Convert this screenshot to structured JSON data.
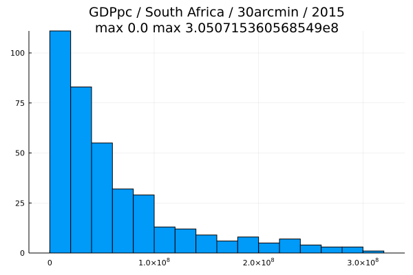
{
  "chart_data": {
    "type": "bar",
    "title": "GDPpc / South Africa / 30arcmin / 2015",
    "subtitle": "max 0.0  max 3.050715360568549e8",
    "xlabel": "",
    "ylabel": "",
    "bin_edges": [
      0,
      20000000,
      40000000,
      60000000,
      80000000,
      100000000,
      120000000,
      140000000,
      160000000,
      180000000,
      200000000,
      220000000,
      240000000,
      260000000,
      280000000,
      300000000,
      320000000
    ],
    "values": [
      111,
      83,
      55,
      32,
      29,
      13,
      12,
      9,
      6,
      8,
      5,
      7,
      4,
      3,
      3,
      1
    ],
    "xlim": [
      -20000000,
      340000000
    ],
    "ylim": [
      0,
      111
    ],
    "x_ticks": [
      {
        "value": 0,
        "mantissa": "0",
        "exponent": ""
      },
      {
        "value": 100000000,
        "mantissa": "1.0×10",
        "exponent": "8"
      },
      {
        "value": 200000000,
        "mantissa": "2.0×10",
        "exponent": "8"
      },
      {
        "value": 300000000,
        "mantissa": "3.0×10",
        "exponent": "8"
      }
    ],
    "y_ticks": [
      0,
      25,
      50,
      75,
      100
    ],
    "grid": true,
    "legend": "none",
    "bar_color": "#009AF9"
  }
}
